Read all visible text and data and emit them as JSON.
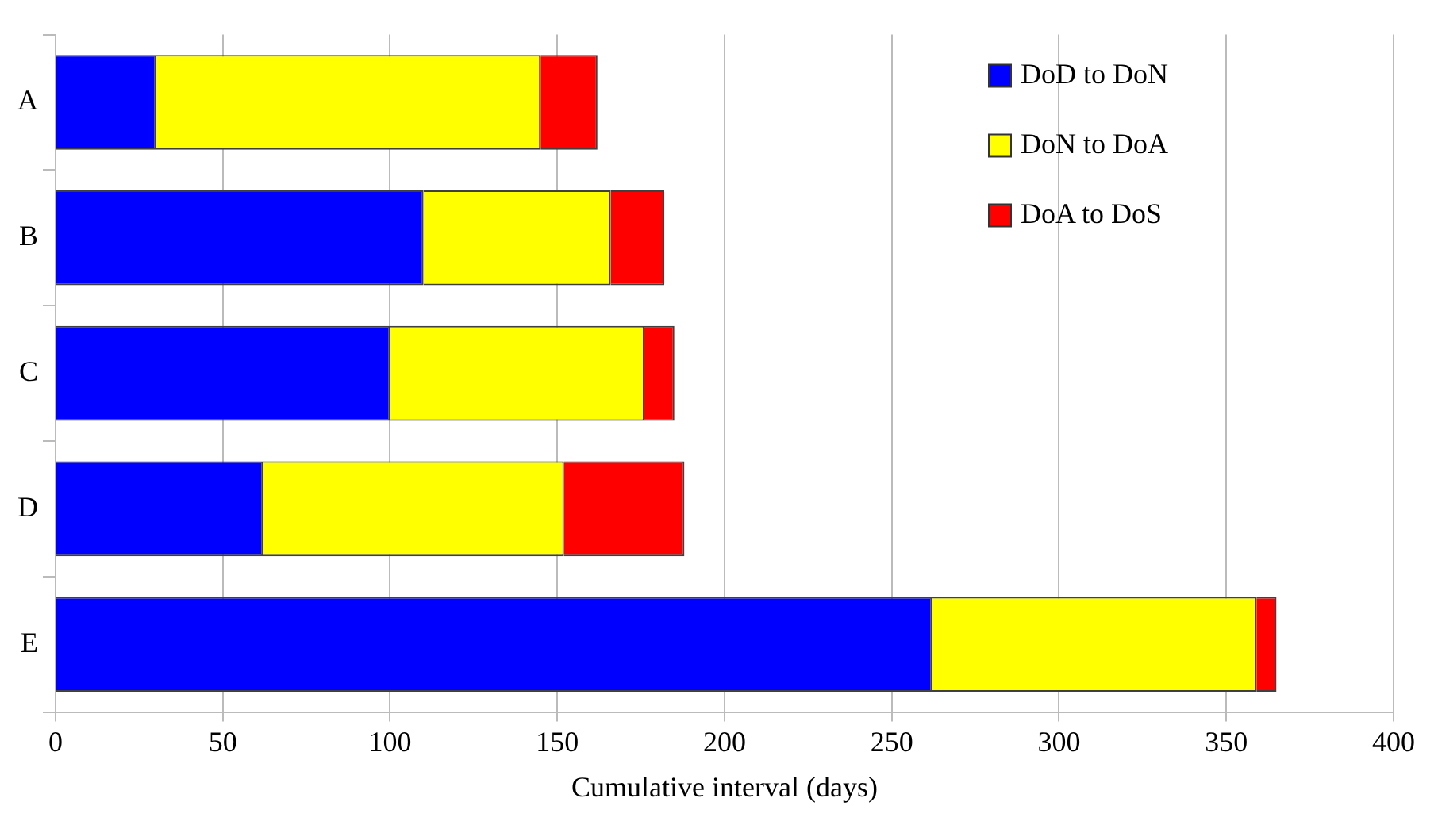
{
  "chart_data": {
    "type": "bar",
    "orientation": "horizontal",
    "stacked": true,
    "xlabel": "Cumulative interval (days)",
    "categories": [
      "A",
      "B",
      "C",
      "D",
      "E"
    ],
    "series": [
      {
        "name": "DoD to DoN",
        "color": "#0000ff",
        "values": [
          30,
          110,
          100,
          62,
          262
        ]
      },
      {
        "name": "DoN to DoA",
        "color": "#ffff00",
        "values": [
          115,
          56,
          76,
          90,
          97
        ]
      },
      {
        "name": "DoA to DoS",
        "color": "#ff0000",
        "values": [
          17,
          16,
          9,
          36,
          6
        ]
      }
    ],
    "xlim": [
      0,
      400
    ],
    "xticks": [
      0,
      50,
      100,
      150,
      200,
      250,
      300,
      350,
      400
    ],
    "grid": "x",
    "legend": "top right"
  }
}
